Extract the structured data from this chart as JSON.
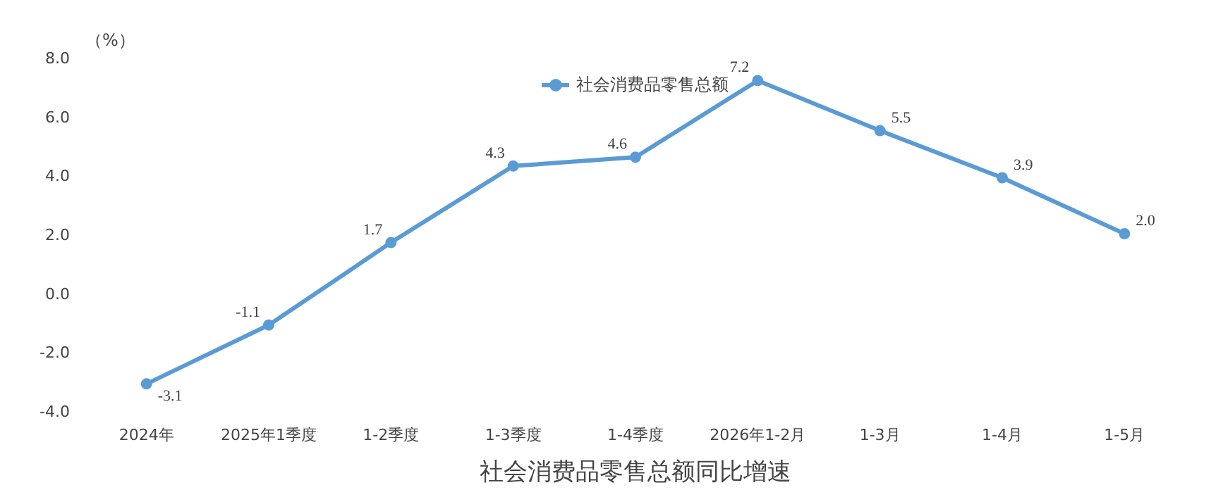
{
  "chart_data": {
    "type": "line",
    "title": "社会消费品零售总额同比增速",
    "ylabel": "（%）",
    "categories": [
      "2024年",
      "2025年1季度",
      "1-2季度",
      "1-3季度",
      "1-4季度",
      "2026年1-2月",
      "1-3月",
      "1-4月",
      "1-5月"
    ],
    "series": [
      {
        "name": "社会消费品零售总额",
        "color": "#5b9bd5",
        "values": [
          -3.1,
          -1.1,
          1.7,
          4.3,
          4.6,
          7.2,
          5.5,
          3.9,
          2.0
        ],
        "value_labels": [
          "-3.1",
          "-1.1",
          "1.7",
          "4.3",
          "4.6",
          "7.2",
          "5.5",
          "3.9",
          "2.0"
        ]
      }
    ],
    "ylim": [
      -4,
      8
    ],
    "yticks": [
      {
        "value": -4,
        "label": "-4.0"
      },
      {
        "value": -2,
        "label": "-2.0"
      },
      {
        "value": 0,
        "label": "0.0"
      },
      {
        "value": 2,
        "label": "2.0"
      },
      {
        "value": 4,
        "label": "4.0"
      },
      {
        "value": 6,
        "label": "6.0"
      },
      {
        "value": 8,
        "label": "8.0"
      }
    ],
    "grid": false,
    "legend": "top",
    "marker": "circle",
    "line_style": "solid"
  }
}
